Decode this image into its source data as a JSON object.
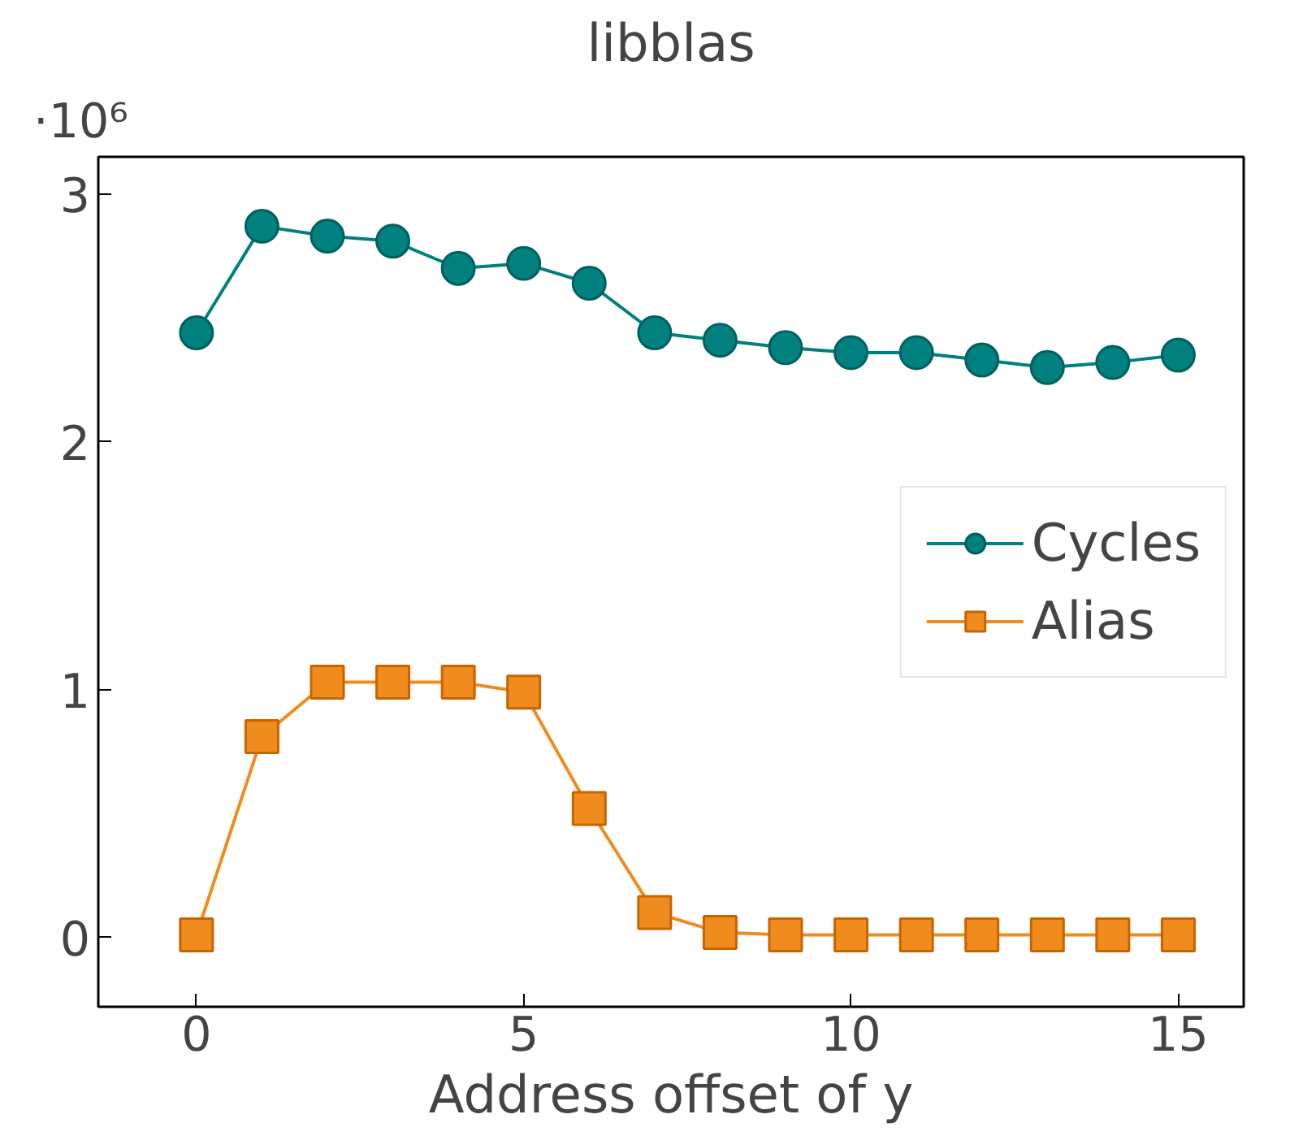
{
  "chart_data": {
    "type": "line",
    "title": "libblas",
    "xlabel": "Address offset of y",
    "annotations": [
      "·10⁶"
    ],
    "x": [
      0,
      1,
      2,
      3,
      4,
      5,
      6,
      7,
      8,
      9,
      10,
      11,
      12,
      13,
      14,
      15
    ],
    "series": [
      {
        "name": "Cycles",
        "color": "#00807f",
        "marker": "circle",
        "values": [
          2.44,
          2.87,
          2.83,
          2.81,
          2.7,
          2.72,
          2.64,
          2.44,
          2.41,
          2.38,
          2.36,
          2.36,
          2.33,
          2.3,
          2.32,
          2.35
        ]
      },
      {
        "name": "Alias",
        "color": "#f08c1e",
        "marker": "square",
        "values": [
          0.01,
          0.81,
          1.03,
          1.03,
          1.03,
          0.99,
          0.52,
          0.1,
          0.02,
          0.01,
          0.01,
          0.01,
          0.01,
          0.01,
          0.01,
          0.01
        ]
      }
    ],
    "xlim": [
      -1.5,
      16
    ],
    "ylim": [
      -0.28,
      3.15
    ],
    "xticks": [
      0,
      5,
      10,
      15
    ],
    "yticks": [
      0,
      1,
      2,
      3
    ],
    "grid": false,
    "legend": "center right",
    "line_style": "solid"
  }
}
